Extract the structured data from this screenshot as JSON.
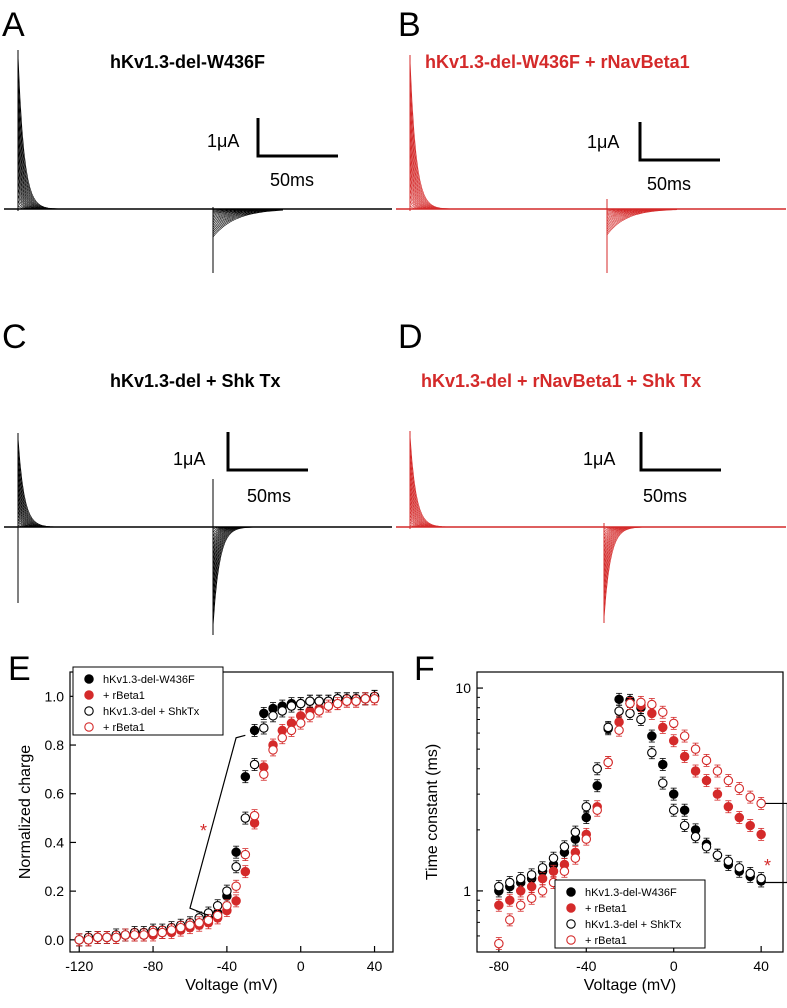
{
  "panels": [
    {
      "letter": "A",
      "title": "hKv1.3-del-W436F",
      "color": "#000000",
      "scale_current": "1μA",
      "scale_time": "50ms"
    },
    {
      "letter": "B",
      "title": "hKv1.3-del-W436F + rNavBeta1",
      "color": "#d42a2a",
      "scale_current": "1μA",
      "scale_time": "50ms"
    },
    {
      "letter": "C",
      "title": "hKv1.3-del + Shk Tx",
      "color": "#000000",
      "scale_current": "1μA",
      "scale_time": "50ms"
    },
    {
      "letter": "D",
      "title": "hKv1.3-del + rNavBeta1 + Shk Tx",
      "color": "#d42a2a",
      "scale_current": "1μA",
      "scale_time": "50ms"
    }
  ],
  "significance": "*",
  "chart_data": [
    {
      "letter": "E",
      "type": "scatter",
      "xlabel": "Voltage (mV)",
      "ylabel": "Normalized charge",
      "xlim": [
        -125,
        50
      ],
      "ylim": [
        -0.05,
        1.1
      ],
      "xticks": [
        "-120",
        "-80",
        "-40",
        "0",
        "40"
      ],
      "yticks": [
        "0.0",
        "0.2",
        "0.4",
        "0.6",
        "0.8",
        "1.0"
      ],
      "legend_position": "top-left",
      "x": [
        -120,
        -115,
        -110,
        -105,
        -100,
        -95,
        -90,
        -85,
        -80,
        -75,
        -70,
        -65,
        -60,
        -55,
        -50,
        -45,
        -40,
        -35,
        -30,
        -25,
        -20,
        -15,
        -10,
        -5,
        0,
        5,
        10,
        15,
        20,
        25,
        30,
        35,
        40
      ],
      "series": [
        {
          "name": "hKv1.3-del-W436F",
          "color": "#000000",
          "filled": true,
          "values": [
            0.0,
            0.0,
            0.01,
            0.01,
            0.01,
            0.02,
            0.02,
            0.02,
            0.03,
            0.03,
            0.04,
            0.05,
            0.06,
            0.07,
            0.09,
            0.11,
            0.18,
            0.36,
            0.67,
            0.86,
            0.93,
            0.95,
            0.96,
            0.97,
            0.97,
            0.98,
            0.98,
            0.98,
            0.99,
            0.99,
            0.99,
            0.99,
            1.0
          ]
        },
        {
          "name": "+ rBeta1",
          "color": "#d42a2a",
          "filled": true,
          "values": [
            0.0,
            0.0,
            0.01,
            0.01,
            0.01,
            0.02,
            0.02,
            0.02,
            0.02,
            0.03,
            0.03,
            0.04,
            0.05,
            0.06,
            0.07,
            0.09,
            0.12,
            0.16,
            0.28,
            0.48,
            0.71,
            0.8,
            0.86,
            0.89,
            0.92,
            0.94,
            0.95,
            0.96,
            0.97,
            0.98,
            0.98,
            0.99,
            0.99
          ]
        },
        {
          "name": "hKv1.3-del + ShkTx",
          "color": "#000000",
          "filled": false,
          "values": [
            0.0,
            0.01,
            0.01,
            0.01,
            0.02,
            0.02,
            0.03,
            0.03,
            0.04,
            0.04,
            0.05,
            0.06,
            0.07,
            0.09,
            0.11,
            0.14,
            0.2,
            0.3,
            0.5,
            0.72,
            0.87,
            0.92,
            0.94,
            0.96,
            0.97,
            0.98,
            0.98,
            0.98,
            0.99,
            0.99,
            0.99,
            0.99,
            1.0
          ]
        },
        {
          "name": "+ rBeta1",
          "color": "#d42a2a",
          "filled": false,
          "values": [
            0.0,
            0.0,
            0.01,
            0.01,
            0.01,
            0.02,
            0.02,
            0.02,
            0.03,
            0.03,
            0.04,
            0.05,
            0.06,
            0.07,
            0.08,
            0.1,
            0.14,
            0.22,
            0.35,
            0.51,
            0.68,
            0.78,
            0.83,
            0.86,
            0.89,
            0.92,
            0.94,
            0.96,
            0.97,
            0.98,
            0.98,
            0.99,
            0.99
          ]
        }
      ]
    },
    {
      "letter": "F",
      "type": "scatter",
      "xlabel": "Voltage (mV)",
      "ylabel": "Time constant (ms)",
      "xscale": "log-y",
      "xlim": [
        -90,
        50
      ],
      "ylim": [
        0.5,
        12
      ],
      "xticks": [
        "-80",
        "-40",
        "0",
        "40"
      ],
      "yticks": [
        "1",
        "10"
      ],
      "legend_position": "bottom-right",
      "x": [
        -80,
        -75,
        -70,
        -65,
        -60,
        -55,
        -50,
        -45,
        -40,
        -35,
        -30,
        -25,
        -20,
        -15,
        -10,
        -5,
        0,
        5,
        10,
        15,
        20,
        25,
        30,
        35,
        40
      ],
      "series": [
        {
          "name": "hKv1.3-del-W436F",
          "color": "#000000",
          "filled": true,
          "values": [
            1.0,
            1.05,
            1.1,
            1.15,
            1.25,
            1.35,
            1.55,
            1.8,
            2.3,
            3.3,
            6.3,
            8.8,
            8.7,
            8.0,
            5.8,
            4.2,
            3.0,
            2.5,
            2.0,
            1.7,
            1.5,
            1.35,
            1.25,
            1.18,
            1.12
          ]
        },
        {
          "name": "+ rBeta1",
          "color": "#d42a2a",
          "filled": true,
          "values": [
            0.85,
            0.9,
            1.0,
            1.05,
            1.15,
            1.25,
            1.35,
            1.55,
            1.9,
            2.6,
            4.3,
            6.8,
            8.4,
            8.2,
            7.5,
            6.4,
            5.5,
            4.6,
            3.9,
            3.5,
            3.0,
            2.6,
            2.3,
            2.1,
            1.9
          ]
        },
        {
          "name": "hKv1.3-del + ShkTx",
          "color": "#000000",
          "filled": false,
          "values": [
            1.05,
            1.1,
            1.15,
            1.2,
            1.3,
            1.45,
            1.65,
            1.95,
            2.6,
            4.0,
            6.4,
            7.7,
            7.5,
            7.0,
            4.8,
            3.4,
            2.5,
            2.1,
            1.85,
            1.65,
            1.5,
            1.4,
            1.3,
            1.22,
            1.15
          ]
        },
        {
          "name": "+ rBeta1",
          "color": "#d42a2a",
          "filled": false,
          "values": [
            0.55,
            0.72,
            0.85,
            0.92,
            1.0,
            1.1,
            1.25,
            1.45,
            1.8,
            2.5,
            4.3,
            6.2,
            8.4,
            8.5,
            8.3,
            7.6,
            6.7,
            5.8,
            5.0,
            4.4,
            3.9,
            3.5,
            3.2,
            2.9,
            2.7
          ]
        }
      ]
    }
  ]
}
